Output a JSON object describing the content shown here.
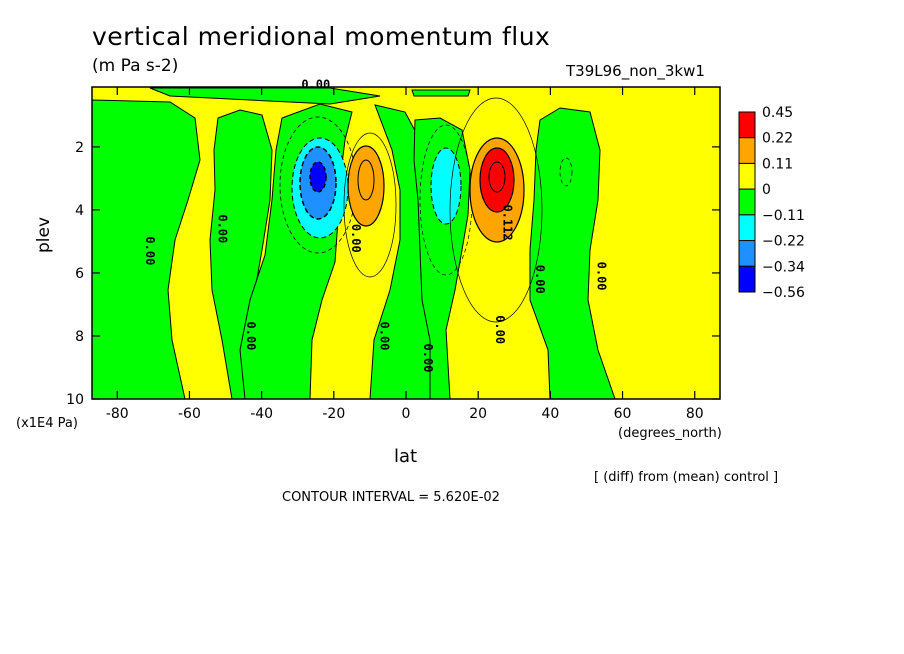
{
  "chart_data": {
    "type": "heatmap",
    "title": "vertical meridional momentum flux",
    "units": "(m Pa s-2)",
    "run_label": "T39L96_non_3kw1",
    "xlabel": "lat",
    "xunit": "(degrees_north)",
    "ylabel": "plev",
    "yunit": "(x1E4 Pa)",
    "x_ticks": [
      "-80",
      "-60",
      "-40",
      "-20",
      "0",
      "20",
      "40",
      "60",
      "80"
    ],
    "x_tick_values": [
      -80,
      -60,
      -40,
      -20,
      0,
      20,
      40,
      60,
      80
    ],
    "y_ticks": [
      "2",
      "4",
      "6",
      "8",
      "10"
    ],
    "y_tick_values": [
      2,
      4,
      6,
      8,
      10
    ],
    "xlim": [
      -87,
      87
    ],
    "ylim": [
      10,
      0.1
    ],
    "footnote": "[ (diff) from (mean) control ]",
    "contour_interval_text": "CONTOUR INTERVAL = 5.620E-02",
    "colorbar": {
      "labels": [
        "0.45",
        "0.22",
        "0.11",
        "0",
        "−0.11",
        "−0.22",
        "−0.34",
        "−0.56"
      ],
      "colors": [
        "#ff0000",
        "#ffa500",
        "#ffff00",
        "#00ff00",
        "#00ffff",
        "#1e90ff",
        "#0000ff"
      ]
    },
    "contour_labels": [
      {
        "text": "0.00",
        "lat": -72,
        "p": 5.3
      },
      {
        "text": "0.00",
        "lat": -52,
        "p": 4.6
      },
      {
        "text": "0.00",
        "lat": -44,
        "p": 8.0
      },
      {
        "text": "0.00",
        "lat": -15,
        "p": 4.9
      },
      {
        "text": "0.00",
        "lat": -7,
        "p": 8.0
      },
      {
        "text": "0.00",
        "lat": 5,
        "p": 8.7
      },
      {
        "text": "0.00",
        "lat": 25,
        "p": 7.8
      },
      {
        "text": "0.112",
        "lat": 27,
        "p": 4.4
      },
      {
        "text": "0.00",
        "lat": 36,
        "p": 6.2
      },
      {
        "text": "0.00",
        "lat": 53,
        "p": 6.1
      },
      {
        "text": "0.00",
        "lat": -25,
        "p": 0.15
      }
    ],
    "extrema": [
      {
        "lat": -25,
        "p": 3.0,
        "sign": "negative",
        "approx_value": -0.56
      },
      {
        "lat": -12,
        "p": 3.0,
        "sign": "positive",
        "approx_value": 0.22
      },
      {
        "lat": 12,
        "p": 3.1,
        "sign": "negative",
        "approx_value": -0.22
      },
      {
        "lat": 26,
        "p": 3.2,
        "sign": "positive",
        "approx_value": 0.45
      }
    ]
  }
}
